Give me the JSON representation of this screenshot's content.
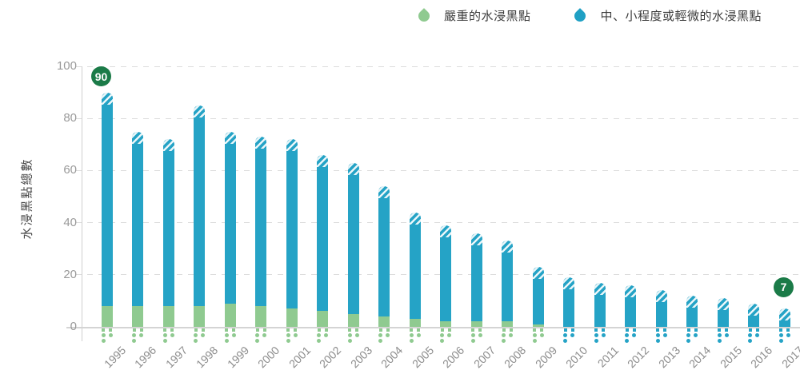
{
  "legend": {
    "items": [
      {
        "label": "嚴重的水浸黑點",
        "color": "#8fca90",
        "icon": "green-droplet-icon"
      },
      {
        "label": "中、小程度或輕微的水浸黑點",
        "color": "#25a3c6",
        "icon": "blue-droplet-icon"
      }
    ]
  },
  "y_axis": {
    "title": "水浸黑點總數",
    "ticks": [
      0,
      20,
      40,
      60,
      80,
      100
    ]
  },
  "chart_data": {
    "type": "bar",
    "stacked": true,
    "categories": [
      "1995",
      "1996",
      "1997",
      "1998",
      "1999",
      "2000",
      "2001",
      "2002",
      "2003",
      "2004",
      "2005",
      "2006",
      "2007",
      "2008",
      "2009",
      "2010",
      "2011",
      "2012",
      "2013",
      "2014",
      "2015",
      "2016",
      "2017"
    ],
    "series": [
      {
        "name": "嚴重的水浸黑點",
        "color": "#8fca90",
        "values": [
          8,
          8,
          8,
          8,
          9,
          8,
          7,
          6,
          5,
          4,
          3,
          2,
          2,
          2,
          1,
          0,
          0,
          0,
          0,
          0,
          0,
          0,
          0
        ]
      },
      {
        "name": "中、小程度或輕微的水浸黑點",
        "color": "#25a3c6",
        "values": [
          82,
          67,
          64,
          77,
          66,
          65,
          65,
          60,
          58,
          50,
          41,
          37,
          34,
          31,
          22,
          19,
          17,
          16,
          14,
          12,
          11,
          9,
          7
        ]
      }
    ],
    "totals": [
      90,
      75,
      72,
      85,
      75,
      73,
      72,
      66,
      63,
      54,
      44,
      39,
      36,
      33,
      23,
      19,
      17,
      16,
      14,
      12,
      11,
      9,
      7
    ],
    "annotations": [
      {
        "category": "1995",
        "value": 90
      },
      {
        "category": "2017",
        "value": 7
      }
    ],
    "title": "",
    "xlabel": "",
    "ylabel": "水浸黑點總數",
    "ylim": [
      0,
      100
    ],
    "grid": "dashed-horizontal",
    "legend_position": "top-right",
    "annotation_color": "#1b7b48"
  }
}
